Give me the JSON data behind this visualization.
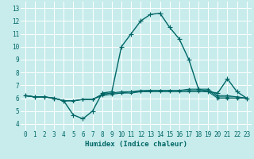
{
  "xlabel": "Humidex (Indice chaleur)",
  "background_color": "#c8ecec",
  "grid_color": "#ffffff",
  "line_color": "#006666",
  "xlim": [
    -0.5,
    23.5
  ],
  "ylim": [
    3.5,
    13.5
  ],
  "xticks": [
    0,
    1,
    2,
    3,
    4,
    5,
    6,
    7,
    8,
    9,
    10,
    11,
    12,
    13,
    14,
    15,
    16,
    17,
    18,
    19,
    20,
    21,
    22,
    23
  ],
  "yticks": [
    4,
    5,
    6,
    7,
    8,
    9,
    10,
    11,
    12,
    13
  ],
  "series": [
    [
      6.2,
      6.1,
      6.1,
      6.0,
      5.8,
      4.7,
      4.4,
      5.0,
      6.4,
      6.5,
      10.0,
      11.0,
      12.0,
      12.5,
      12.6,
      11.5,
      10.6,
      9.0,
      6.7,
      6.5,
      6.4,
      7.5,
      6.5,
      6.0
    ],
    [
      6.2,
      6.1,
      6.1,
      6.0,
      5.8,
      5.8,
      5.9,
      5.9,
      6.2,
      6.3,
      6.4,
      6.4,
      6.5,
      6.5,
      6.5,
      6.5,
      6.5,
      6.5,
      6.5,
      6.5,
      6.0,
      6.0,
      6.0,
      6.0
    ],
    [
      6.2,
      6.1,
      6.1,
      6.0,
      5.8,
      5.8,
      5.9,
      5.9,
      6.3,
      6.4,
      6.4,
      6.5,
      6.5,
      6.6,
      6.6,
      6.6,
      6.6,
      6.6,
      6.6,
      6.6,
      6.1,
      6.1,
      6.1,
      6.0
    ],
    [
      6.2,
      6.1,
      6.1,
      6.0,
      5.8,
      5.8,
      5.9,
      5.9,
      6.3,
      6.4,
      6.5,
      6.5,
      6.6,
      6.6,
      6.6,
      6.6,
      6.6,
      6.7,
      6.7,
      6.7,
      6.2,
      6.2,
      6.1,
      6.0
    ]
  ],
  "marker_sizes": [
    4,
    3,
    3,
    3
  ],
  "linewidths": [
    1.0,
    0.8,
    0.8,
    0.8
  ],
  "tick_fontsize": 5.5,
  "xlabel_fontsize": 6.5
}
